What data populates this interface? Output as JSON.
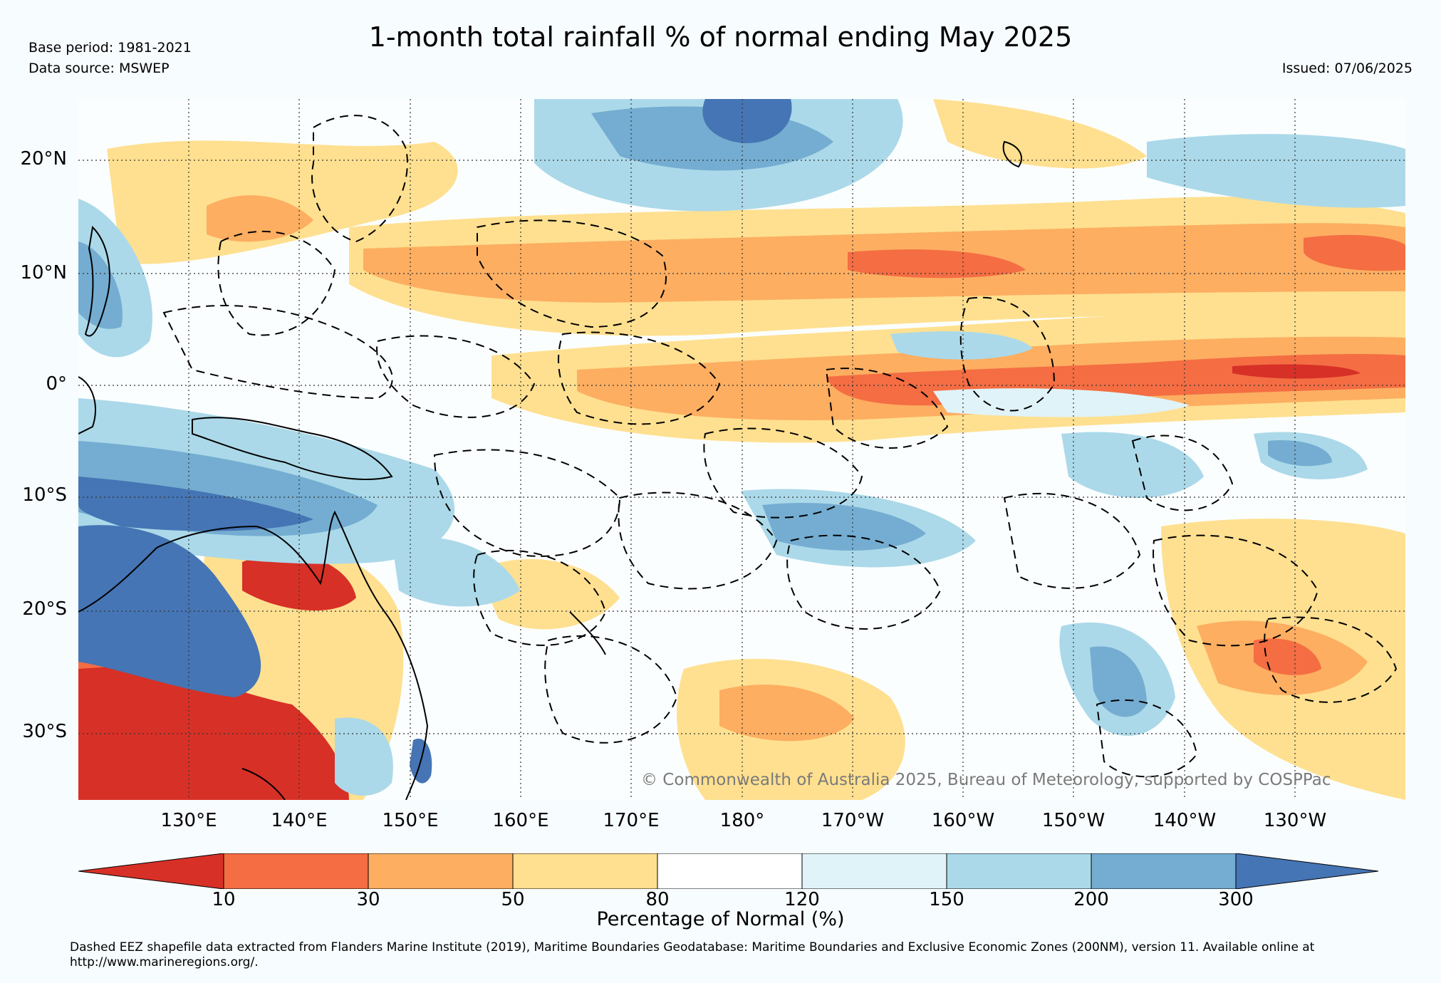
{
  "header": {
    "title": "1-month total rainfall % of normal ending May 2025",
    "base_period": "Base period: 1981-2021",
    "data_source": "Data source: MSWEP",
    "issued": "Issued: 07/06/2025"
  },
  "map": {
    "lat_labels": [
      "20°N",
      "10°N",
      "0°",
      "10°S",
      "20°S",
      "30°S"
    ],
    "lon_labels": [
      "130°E",
      "140°E",
      "150°E",
      "160°E",
      "170°E",
      "180°",
      "170°W",
      "160°W",
      "150°W",
      "140°W",
      "130°W"
    ],
    "copyright": "© Commonwealth of Australia 2025, Bureau of Meteorology, supported by COSPPac",
    "colors": {
      "lt10": "#d73027",
      "b10_30": "#f46d43",
      "b30_50": "#fdae61",
      "b50_80": "#fee090",
      "b80_120": "#ffffff",
      "b120_150": "#e0f3f8",
      "b150_200": "#abd9e9",
      "b200_300": "#74add1",
      "gt300": "#4575b4"
    }
  },
  "colorbar": {
    "ticks": [
      "10",
      "30",
      "50",
      "80",
      "120",
      "150",
      "200",
      "300"
    ],
    "label": "Percentage of Normal (%)"
  },
  "footnote": "Dashed EEZ shapefile data extracted from Flanders Marine Institute (2019), Maritime Boundaries Geodatabase: Maritime Boundaries and Exclusive Economic Zones (200NM), version 11. Available online at http://www.marineregions.org/."
}
